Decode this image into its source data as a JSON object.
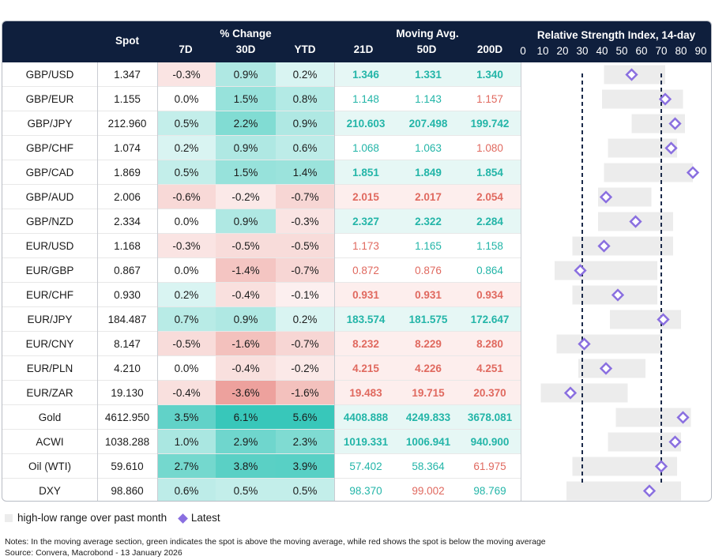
{
  "headers": {
    "spot": "Spot",
    "pct_change": "% Change",
    "d7": "7D",
    "d30": "30D",
    "ytd": "YTD",
    "moving_avg": "Moving Avg.",
    "ma21": "21D",
    "ma50": "50D",
    "ma200": "200D",
    "rsi": "Relative Strength Index, 14-day"
  },
  "chart_data": {
    "type": "table",
    "rsi_axis": {
      "ticks": [
        "0",
        "10",
        "20",
        "30",
        "40",
        "50",
        "60",
        "70",
        "80",
        "90"
      ],
      "min": 0,
      "max": 90,
      "thresholds": [
        30,
        70
      ]
    },
    "rows": [
      {
        "label": "GBP/USD",
        "spot": "1.347",
        "d7": "-0.3%",
        "d30": "0.9%",
        "ytd": "0.2%",
        "ma21": "1.346",
        "ma50": "1.331",
        "ma200": "1.340",
        "ma_above": [
          true,
          true,
          true
        ],
        "ma_bold": true,
        "v7": -0.3,
        "v30": 0.9,
        "vytd": 0.2,
        "rsi_low": 41,
        "rsi_high": 72,
        "rsi": 55
      },
      {
        "label": "GBP/EUR",
        "spot": "1.155",
        "d7": "0.0%",
        "d30": "1.5%",
        "ytd": "0.8%",
        "ma21": "1.148",
        "ma50": "1.143",
        "ma200": "1.157",
        "ma_above": [
          true,
          true,
          false
        ],
        "ma_bold": false,
        "v7": 0.0,
        "v30": 1.5,
        "vytd": 0.8,
        "rsi_low": 40,
        "rsi_high": 81,
        "rsi": 72
      },
      {
        "label": "GBP/JPY",
        "spot": "212.960",
        "d7": "0.5%",
        "d30": "2.2%",
        "ytd": "0.9%",
        "ma21": "210.603",
        "ma50": "207.498",
        "ma200": "199.742",
        "ma_above": [
          true,
          true,
          true
        ],
        "ma_bold": true,
        "v7": 0.5,
        "v30": 2.2,
        "vytd": 0.9,
        "rsi_low": 55,
        "rsi_high": 82,
        "rsi": 77
      },
      {
        "label": "GBP/CHF",
        "spot": "1.074",
        "d7": "0.2%",
        "d30": "0.9%",
        "ytd": "0.6%",
        "ma21": "1.068",
        "ma50": "1.063",
        "ma200": "1.080",
        "ma_above": [
          true,
          true,
          false
        ],
        "ma_bold": false,
        "v7": 0.2,
        "v30": 0.9,
        "vytd": 0.6,
        "rsi_low": 43,
        "rsi_high": 78,
        "rsi": 75
      },
      {
        "label": "GBP/CAD",
        "spot": "1.869",
        "d7": "0.5%",
        "d30": "1.5%",
        "ytd": "1.4%",
        "ma21": "1.851",
        "ma50": "1.849",
        "ma200": "1.854",
        "ma_above": [
          true,
          true,
          true
        ],
        "ma_bold": true,
        "v7": 0.5,
        "v30": 1.5,
        "vytd": 1.4,
        "rsi_low": 41,
        "rsi_high": 86,
        "rsi": 86
      },
      {
        "label": "GBP/AUD",
        "spot": "2.006",
        "d7": "-0.6%",
        "d30": "-0.2%",
        "ytd": "-0.7%",
        "ma21": "2.015",
        "ma50": "2.017",
        "ma200": "2.054",
        "ma_above": [
          false,
          false,
          false
        ],
        "ma_bold": true,
        "v7": -0.6,
        "v30": -0.2,
        "vytd": -0.7,
        "rsi_low": 38,
        "rsi_high": 65,
        "rsi": 42
      },
      {
        "label": "GBP/NZD",
        "spot": "2.334",
        "d7": "0.0%",
        "d30": "0.9%",
        "ytd": "-0.3%",
        "ma21": "2.327",
        "ma50": "2.322",
        "ma200": "2.284",
        "ma_above": [
          true,
          true,
          true
        ],
        "ma_bold": true,
        "v7": 0.0,
        "v30": 0.9,
        "vytd": -0.3,
        "rsi_low": 38,
        "rsi_high": 76,
        "rsi": 57
      },
      {
        "label": "EUR/USD",
        "spot": "1.168",
        "d7": "-0.3%",
        "d30": "-0.5%",
        "ytd": "-0.5%",
        "ma21": "1.173",
        "ma50": "1.165",
        "ma200": "1.158",
        "ma_above": [
          false,
          true,
          true
        ],
        "ma_bold": false,
        "v7": -0.3,
        "v30": -0.5,
        "vytd": -0.5,
        "rsi_low": 25,
        "rsi_high": 76,
        "rsi": 41
      },
      {
        "label": "EUR/GBP",
        "spot": "0.867",
        "d7": "0.0%",
        "d30": "-1.4%",
        "ytd": "-0.7%",
        "ma21": "0.872",
        "ma50": "0.876",
        "ma200": "0.864",
        "ma_above": [
          false,
          false,
          true
        ],
        "ma_bold": false,
        "v7": 0.0,
        "v30": -1.4,
        "vytd": -0.7,
        "rsi_low": 16,
        "rsi_high": 68,
        "rsi": 29
      },
      {
        "label": "EUR/CHF",
        "spot": "0.930",
        "d7": "0.2%",
        "d30": "-0.4%",
        "ytd": "-0.1%",
        "ma21": "0.931",
        "ma50": "0.931",
        "ma200": "0.934",
        "ma_above": [
          false,
          false,
          false
        ],
        "ma_bold": true,
        "v7": 0.2,
        "v30": -0.4,
        "vytd": -0.1,
        "rsi_low": 25,
        "rsi_high": 68,
        "rsi": 48
      },
      {
        "label": "EUR/JPY",
        "spot": "184.487",
        "d7": "0.7%",
        "d30": "0.9%",
        "ytd": "0.2%",
        "ma21": "183.574",
        "ma50": "181.575",
        "ma200": "172.647",
        "ma_above": [
          true,
          true,
          true
        ],
        "ma_bold": true,
        "v7": 0.7,
        "v30": 0.9,
        "vytd": 0.2,
        "rsi_low": 44,
        "rsi_high": 80,
        "rsi": 71
      },
      {
        "label": "EUR/CNY",
        "spot": "8.147",
        "d7": "-0.5%",
        "d30": "-1.6%",
        "ytd": "-0.7%",
        "ma21": "8.232",
        "ma50": "8.229",
        "ma200": "8.280",
        "ma_above": [
          false,
          false,
          false
        ],
        "ma_bold": true,
        "v7": -0.5,
        "v30": -1.6,
        "vytd": -0.7,
        "rsi_low": 17,
        "rsi_high": 70,
        "rsi": 31
      },
      {
        "label": "EUR/PLN",
        "spot": "4.210",
        "d7": "0.0%",
        "d30": "-0.4%",
        "ytd": "-0.2%",
        "ma21": "4.215",
        "ma50": "4.226",
        "ma200": "4.251",
        "ma_above": [
          false,
          false,
          false
        ],
        "ma_bold": true,
        "v7": 0.0,
        "v30": -0.4,
        "vytd": -0.2,
        "rsi_low": 28,
        "rsi_high": 62,
        "rsi": 42
      },
      {
        "label": "EUR/ZAR",
        "spot": "19.130",
        "d7": "-0.4%",
        "d30": "-3.6%",
        "ytd": "-1.6%",
        "ma21": "19.483",
        "ma50": "19.715",
        "ma200": "20.370",
        "ma_above": [
          false,
          false,
          false
        ],
        "ma_bold": true,
        "v7": -0.4,
        "v30": -3.6,
        "vytd": -1.6,
        "rsi_low": 9,
        "rsi_high": 53,
        "rsi": 24
      },
      {
        "label": "Gold",
        "spot": "4612.950",
        "d7": "3.5%",
        "d30": "6.1%",
        "ytd": "5.6%",
        "ma21": "4408.888",
        "ma50": "4249.833",
        "ma200": "3678.081",
        "ma_above": [
          true,
          true,
          true
        ],
        "ma_bold": true,
        "v7": 3.5,
        "v30": 6.1,
        "vytd": 5.6,
        "rsi_low": 47,
        "rsi_high": 85,
        "rsi": 81
      },
      {
        "label": "ACWI",
        "spot": "1038.288",
        "d7": "1.0%",
        "d30": "2.9%",
        "ytd": "2.3%",
        "ma21": "1019.331",
        "ma50": "1006.941",
        "ma200": "940.900",
        "ma_above": [
          true,
          true,
          true
        ],
        "ma_bold": true,
        "v7": 1.0,
        "v30": 2.9,
        "vytd": 2.3,
        "rsi_low": 43,
        "rsi_high": 80,
        "rsi": 77
      },
      {
        "label": "Oil (WTI)",
        "spot": "59.610",
        "d7": "2.7%",
        "d30": "3.8%",
        "ytd": "3.9%",
        "ma21": "57.402",
        "ma50": "58.364",
        "ma200": "61.975",
        "ma_above": [
          true,
          true,
          false
        ],
        "ma_bold": false,
        "v7": 2.7,
        "v30": 3.8,
        "vytd": 3.9,
        "rsi_low": 25,
        "rsi_high": 78,
        "rsi": 70
      },
      {
        "label": "DXY",
        "spot": "98.860",
        "d7": "0.6%",
        "d30": "0.5%",
        "ytd": "0.5%",
        "ma21": "98.370",
        "ma50": "99.002",
        "ma200": "98.769",
        "ma_above": [
          true,
          false,
          true
        ],
        "ma_bold": false,
        "v7": 0.6,
        "v30": 0.5,
        "vytd": 0.5,
        "rsi_low": 22,
        "rsi_high": 80,
        "rsi": 64
      }
    ],
    "legend": {
      "range": "high-low range over past month",
      "latest": "Latest"
    }
  },
  "colors": {
    "header_bg": "#0f1f3d",
    "positive": "#2ec4b6",
    "negative": "#e8857f",
    "above_text": "#23b5a8",
    "below_text": "#e0695f",
    "ma_above_bg": "#e6f7f5",
    "ma_below_bg": "#fdeeed",
    "range_bar": "#ececec",
    "marker": "#8a6fe0"
  },
  "notes": {
    "line1": "Notes: In the moving average section, green indicates the spot is above the moving average, while red shows the spot is below the moving average",
    "line2": "Source: Convera, Macrobond - 13 January 2026"
  }
}
